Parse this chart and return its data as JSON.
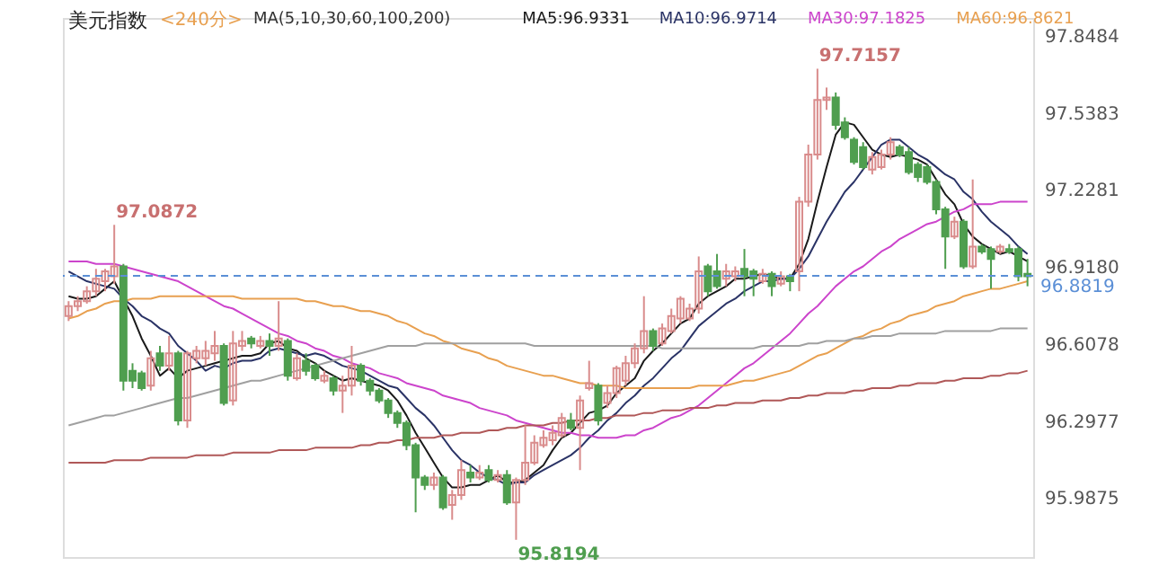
{
  "chart_data": {
    "type": "candlestick",
    "title": "美元指数",
    "subtitle": "<240分>",
    "categories": [
      null,
      null,
      null,
      null,
      null,
      null,
      null,
      null,
      null,
      null,
      null,
      null,
      null,
      null,
      null,
      null,
      null,
      null,
      null,
      null,
      null,
      null,
      null,
      null,
      null,
      null,
      null,
      null,
      null,
      null,
      null,
      null,
      null,
      null,
      null,
      null,
      null,
      null,
      null,
      null,
      null,
      null,
      null,
      null,
      null,
      null,
      null,
      null,
      null,
      null,
      null,
      null,
      null,
      null,
      null,
      null,
      null,
      null,
      null,
      null,
      null,
      null,
      null,
      null,
      null,
      null,
      null,
      null,
      null,
      null,
      null,
      null,
      null,
      null,
      null,
      null,
      null,
      null,
      null,
      null,
      null,
      null,
      null,
      null,
      null,
      null,
      null,
      null,
      null,
      null,
      null,
      null,
      null,
      null,
      null,
      null,
      null,
      null,
      null,
      null,
      null,
      null,
      null,
      null,
      null,
      null
    ],
    "ohlc": [
      [
        96.72,
        96.78,
        96.7,
        96.76
      ],
      [
        96.76,
        96.8,
        96.74,
        96.78
      ],
      [
        96.78,
        96.84,
        96.77,
        96.82
      ],
      [
        96.82,
        96.91,
        96.8,
        96.87
      ],
      [
        96.86,
        96.91,
        96.82,
        96.9
      ],
      [
        96.88,
        97.0872,
        96.85,
        96.92
      ],
      [
        96.92,
        96.93,
        96.42,
        96.46
      ],
      [
        96.5,
        96.53,
        96.43,
        96.46
      ],
      [
        96.49,
        96.5,
        96.42,
        96.43
      ],
      [
        96.44,
        96.58,
        96.42,
        96.55
      ],
      [
        96.57,
        96.6,
        96.5,
        96.52
      ],
      [
        96.52,
        96.64,
        96.5,
        96.57
      ],
      [
        96.57,
        96.58,
        96.28,
        96.3
      ],
      [
        96.3,
        96.58,
        96.27,
        96.57
      ],
      [
        96.55,
        96.6,
        96.53,
        96.58
      ],
      [
        96.55,
        96.62,
        96.52,
        96.58
      ],
      [
        96.57,
        96.66,
        96.54,
        96.6
      ],
      [
        96.6,
        96.61,
        96.36,
        96.37
      ],
      [
        96.38,
        96.66,
        96.36,
        96.61
      ],
      [
        96.6,
        96.66,
        96.58,
        96.62
      ],
      [
        96.63,
        96.64,
        96.59,
        96.61
      ],
      [
        96.6,
        96.64,
        96.59,
        96.62
      ],
      [
        96.62,
        96.65,
        96.56,
        96.6
      ],
      [
        96.6,
        96.78,
        96.58,
        96.63
      ],
      [
        96.62,
        96.63,
        96.46,
        96.48
      ],
      [
        96.47,
        96.57,
        96.46,
        96.55
      ],
      [
        96.54,
        96.57,
        96.48,
        96.5
      ],
      [
        96.52,
        96.53,
        96.46,
        96.47
      ],
      [
        96.46,
        96.5,
        96.45,
        96.48
      ],
      [
        96.47,
        96.48,
        96.4,
        96.42
      ],
      [
        96.42,
        96.48,
        96.33,
        96.44
      ],
      [
        96.44,
        96.6,
        96.4,
        96.52
      ],
      [
        96.52,
        96.53,
        96.44,
        96.46
      ],
      [
        96.46,
        96.47,
        96.4,
        96.42
      ],
      [
        96.42,
        96.43,
        96.37,
        96.38
      ],
      [
        96.38,
        96.39,
        96.31,
        96.33
      ],
      [
        96.33,
        96.34,
        96.27,
        96.29
      ],
      [
        96.29,
        96.3,
        96.18,
        96.2
      ],
      [
        96.2,
        96.21,
        95.93,
        96.07
      ],
      [
        96.07,
        96.08,
        96.02,
        96.04
      ],
      [
        96.04,
        96.09,
        96.02,
        96.07
      ],
      [
        96.07,
        96.08,
        95.94,
        95.95
      ],
      [
        95.96,
        96.02,
        95.9,
        96.0
      ],
      [
        96.0,
        96.14,
        95.98,
        96.1
      ],
      [
        96.09,
        96.12,
        96.05,
        96.07
      ],
      [
        96.07,
        96.12,
        96.06,
        96.09
      ],
      [
        96.1,
        96.12,
        96.05,
        96.06
      ],
      [
        96.06,
        96.1,
        96.05,
        96.08
      ],
      [
        96.08,
        96.1,
        95.96,
        95.97
      ],
      [
        95.97,
        96.07,
        95.8194,
        96.06
      ],
      [
        96.06,
        96.28,
        96.04,
        96.13
      ],
      [
        96.13,
        96.24,
        96.12,
        96.21
      ],
      [
        96.2,
        96.26,
        96.19,
        96.23
      ],
      [
        96.22,
        96.28,
        96.2,
        96.25
      ],
      [
        96.24,
        96.33,
        96.23,
        96.31
      ],
      [
        96.3,
        96.33,
        96.26,
        96.27
      ],
      [
        96.27,
        96.4,
        96.1,
        96.38
      ],
      [
        96.43,
        96.54,
        96.42,
        96.45
      ],
      [
        96.44,
        96.45,
        96.28,
        96.3
      ],
      [
        96.37,
        96.44,
        96.35,
        96.41
      ],
      [
        96.41,
        96.52,
        96.39,
        96.51
      ],
      [
        96.46,
        96.56,
        96.44,
        96.53
      ],
      [
        96.53,
        96.61,
        96.51,
        96.59
      ],
      [
        96.59,
        96.8,
        96.57,
        96.66
      ],
      [
        96.66,
        96.67,
        96.58,
        96.6
      ],
      [
        96.61,
        96.69,
        96.6,
        96.67
      ],
      [
        96.66,
        96.75,
        96.65,
        96.72
      ],
      [
        96.71,
        96.8,
        96.69,
        96.79
      ],
      [
        96.71,
        96.77,
        96.7,
        96.75
      ],
      [
        96.75,
        96.96,
        96.73,
        96.9
      ],
      [
        96.92,
        96.93,
        96.8,
        96.82
      ],
      [
        96.9,
        96.97,
        96.83,
        96.84
      ],
      [
        96.87,
        96.93,
        96.84,
        96.9
      ],
      [
        96.88,
        96.92,
        96.86,
        96.9
      ],
      [
        96.91,
        96.99,
        96.8,
        96.88
      ],
      [
        96.9,
        96.91,
        96.8,
        96.87
      ],
      [
        96.86,
        96.91,
        96.85,
        96.89
      ],
      [
        96.89,
        96.9,
        96.8,
        96.84
      ],
      [
        96.85,
        96.9,
        96.84,
        96.88
      ],
      [
        96.88,
        96.89,
        96.82,
        96.86
      ],
      [
        96.9,
        97.2,
        96.82,
        97.18
      ],
      [
        97.18,
        97.41,
        97.16,
        97.37
      ],
      [
        97.37,
        97.7157,
        97.35,
        97.59
      ],
      [
        97.59,
        97.64,
        97.55,
        97.6
      ],
      [
        97.6,
        97.62,
        97.47,
        97.49
      ],
      [
        97.5,
        97.52,
        97.43,
        97.44
      ],
      [
        97.43,
        97.44,
        97.33,
        97.34
      ],
      [
        97.4,
        97.42,
        97.31,
        97.32
      ],
      [
        97.31,
        97.38,
        97.29,
        97.36
      ],
      [
        97.32,
        97.39,
        97.31,
        97.37
      ],
      [
        97.37,
        97.44,
        97.35,
        97.42
      ],
      [
        97.4,
        97.41,
        97.36,
        97.37
      ],
      [
        97.38,
        97.4,
        97.29,
        97.3
      ],
      [
        97.33,
        97.34,
        97.26,
        97.28
      ],
      [
        97.32,
        97.33,
        97.25,
        97.26
      ],
      [
        97.26,
        97.27,
        97.13,
        97.15
      ],
      [
        97.15,
        97.16,
        96.91,
        97.04
      ],
      [
        97.04,
        97.12,
        97.03,
        97.1
      ],
      [
        97.1,
        97.11,
        96.91,
        96.92
      ],
      [
        96.92,
        97.27,
        96.91,
        97.0
      ],
      [
        97.0,
        97.01,
        96.97,
        96.98
      ],
      [
        96.99,
        97.0,
        96.83,
        96.95
      ],
      [
        96.98,
        97.01,
        96.97,
        97.0
      ],
      [
        96.99,
        97.01,
        96.97,
        96.98
      ],
      [
        96.99,
        97.0,
        96.86,
        96.88
      ],
      [
        96.89,
        96.95,
        96.84,
        96.88
      ]
    ],
    "colors": [
      "#d98c8c",
      "#d98c8c",
      "#d98c8c",
      "#d98c8c",
      "#d98c8c",
      "#d98c8c",
      "#4f9e4f",
      "#4f9e4f",
      "#4f9e4f",
      "#d98c8c",
      "#4f9e4f",
      "#d98c8c",
      "#4f9e4f",
      "#d98c8c",
      "#d98c8c",
      "#d98c8c",
      "#d98c8c",
      "#4f9e4f",
      "#d98c8c",
      "#d98c8c",
      "#4f9e4f",
      "#d98c8c",
      "#4f9e4f",
      "#d98c8c",
      "#4f9e4f",
      "#d98c8c",
      "#4f9e4f",
      "#4f9e4f",
      "#d98c8c",
      "#4f9e4f",
      "#d98c8c",
      "#d98c8c",
      "#4f9e4f",
      "#4f9e4f",
      "#4f9e4f",
      "#4f9e4f",
      "#4f9e4f",
      "#4f9e4f",
      "#4f9e4f",
      "#4f9e4f",
      "#d98c8c",
      "#4f9e4f",
      "#d98c8c",
      "#d98c8c",
      "#4f9e4f",
      "#d98c8c",
      "#4f9e4f",
      "#d98c8c",
      "#4f9e4f",
      "#d98c8c",
      "#d98c8c",
      "#d98c8c",
      "#d98c8c",
      "#d98c8c",
      "#d98c8c",
      "#4f9e4f",
      "#d98c8c",
      "#d98c8c",
      "#4f9e4f",
      "#d98c8c",
      "#d98c8c",
      "#d98c8c",
      "#d98c8c",
      "#d98c8c",
      "#4f9e4f",
      "#d98c8c",
      "#d98c8c",
      "#d98c8c",
      "#d98c8c",
      "#d98c8c",
      "#4f9e4f",
      "#4f9e4f",
      "#d98c8c",
      "#d98c8c",
      "#4f9e4f",
      "#4f9e4f",
      "#d98c8c",
      "#4f9e4f",
      "#d98c8c",
      "#4f9e4f",
      "#d98c8c",
      "#d98c8c",
      "#d98c8c",
      "#d98c8c",
      "#4f9e4f",
      "#4f9e4f",
      "#4f9e4f",
      "#4f9e4f",
      "#d98c8c",
      "#d98c8c",
      "#d98c8c",
      "#4f9e4f",
      "#4f9e4f",
      "#4f9e4f",
      "#4f9e4f",
      "#4f9e4f",
      "#4f9e4f",
      "#d98c8c",
      "#4f9e4f",
      "#d98c8c",
      "#4f9e4f",
      "#4f9e4f",
      "#d98c8c",
      "#4f9e4f",
      "#4f9e4f",
      "#4f9e4f"
    ],
    "series": [
      {
        "type": "line",
        "name": "MA5:96.9331",
        "color": "#1a1a1a",
        "values": [
          96.8,
          96.79,
          96.79,
          96.8,
          96.83,
          96.86,
          96.79,
          96.72,
          96.63,
          96.56,
          96.48,
          96.51,
          96.47,
          96.5,
          96.51,
          96.52,
          96.53,
          96.54,
          96.55,
          96.56,
          96.56,
          96.57,
          96.61,
          96.62,
          96.59,
          96.58,
          96.55,
          96.53,
          96.5,
          96.48,
          96.46,
          96.47,
          96.46,
          96.45,
          96.44,
          96.42,
          96.38,
          96.32,
          96.25,
          96.19,
          96.13,
          96.07,
          96.03,
          96.03,
          96.04,
          96.04,
          96.06,
          96.08,
          96.05,
          96.05,
          96.06,
          96.09,
          96.12,
          96.18,
          96.23,
          96.25,
          96.29,
          96.33,
          96.34,
          96.36,
          96.41,
          96.44,
          96.47,
          96.54,
          96.58,
          96.61,
          96.65,
          96.69,
          96.71,
          96.77,
          96.8,
          96.82,
          96.84,
          96.87,
          96.87,
          96.88,
          96.89,
          96.88,
          96.87,
          96.87,
          96.93,
          97.03,
          97.18,
          97.32,
          97.45,
          97.5,
          97.49,
          97.44,
          97.39,
          97.37,
          97.36,
          97.37,
          97.36,
          97.35,
          97.33,
          97.27,
          97.21,
          97.17,
          97.09,
          97.04,
          97.01,
          96.99,
          96.97,
          96.98,
          96.96,
          96.94
        ]
      },
      {
        "type": "line",
        "name": "MA10:96.9714",
        "color": "#2a3366",
        "values": [
          96.9,
          96.88,
          96.86,
          96.85,
          96.84,
          96.83,
          96.79,
          96.76,
          96.72,
          96.7,
          96.67,
          96.65,
          96.6,
          96.57,
          96.54,
          96.5,
          96.52,
          96.51,
          96.53,
          96.54,
          96.54,
          96.55,
          96.58,
          96.59,
          96.58,
          96.57,
          96.56,
          96.57,
          96.56,
          96.54,
          96.52,
          96.51,
          96.5,
          96.48,
          96.46,
          96.44,
          96.43,
          96.39,
          96.35,
          96.32,
          96.28,
          96.23,
          96.18,
          96.14,
          96.12,
          96.09,
          96.07,
          96.06,
          96.04,
          96.05,
          96.05,
          96.08,
          96.1,
          96.12,
          96.14,
          96.16,
          96.19,
          96.23,
          96.26,
          96.3,
          96.33,
          96.37,
          96.4,
          96.44,
          96.47,
          96.51,
          96.55,
          96.58,
          96.63,
          96.68,
          96.71,
          96.74,
          96.77,
          96.79,
          96.82,
          96.84,
          96.86,
          96.86,
          96.87,
          96.87,
          96.91,
          96.96,
          97.03,
          97.1,
          97.16,
          97.22,
          97.26,
          97.31,
          97.36,
          97.41,
          97.43,
          97.43,
          97.4,
          97.37,
          97.35,
          97.32,
          97.29,
          97.27,
          97.22,
          97.19,
          97.14,
          97.1,
          97.07,
          97.04,
          97.0,
          96.97
        ]
      },
      {
        "type": "line",
        "name": "MA30:97.1825",
        "color": "#cc44cc",
        "values": [
          96.94,
          96.94,
          96.94,
          96.93,
          96.93,
          96.93,
          96.92,
          96.91,
          96.9,
          96.89,
          96.88,
          96.87,
          96.86,
          96.84,
          96.82,
          96.8,
          96.78,
          96.76,
          96.75,
          96.73,
          96.71,
          96.69,
          96.67,
          96.65,
          96.64,
          96.62,
          96.61,
          96.59,
          96.58,
          96.56,
          96.55,
          96.53,
          96.52,
          96.51,
          96.49,
          96.48,
          96.47,
          96.45,
          96.44,
          96.43,
          96.42,
          96.4,
          96.39,
          96.38,
          96.37,
          96.35,
          96.34,
          96.33,
          96.32,
          96.3,
          96.29,
          96.28,
          96.27,
          96.26,
          96.25,
          96.25,
          96.24,
          96.24,
          96.23,
          96.23,
          96.23,
          96.24,
          96.24,
          96.26,
          96.27,
          96.29,
          96.31,
          96.32,
          96.34,
          96.36,
          96.39,
          96.42,
          96.45,
          96.48,
          96.51,
          96.53,
          96.56,
          96.59,
          96.62,
          96.65,
          96.69,
          96.73,
          96.76,
          96.8,
          96.84,
          96.87,
          96.9,
          96.92,
          96.95,
          96.98,
          97.0,
          97.03,
          97.05,
          97.07,
          97.09,
          97.1,
          97.12,
          97.14,
          97.15,
          97.17,
          97.17,
          97.17,
          97.18,
          97.18,
          97.18,
          97.18
        ]
      },
      {
        "type": "line",
        "name": "MA60:96.8621",
        "color": "#e8a050",
        "values": [
          96.71,
          96.72,
          96.74,
          96.75,
          96.77,
          96.78,
          96.78,
          96.79,
          96.79,
          96.79,
          96.8,
          96.8,
          96.8,
          96.8,
          96.8,
          96.8,
          96.8,
          96.8,
          96.8,
          96.79,
          96.79,
          96.79,
          96.79,
          96.79,
          96.79,
          96.79,
          96.78,
          96.78,
          96.77,
          96.76,
          96.76,
          96.75,
          96.74,
          96.74,
          96.73,
          96.72,
          96.7,
          96.69,
          96.67,
          96.65,
          96.64,
          96.62,
          96.61,
          96.59,
          96.58,
          96.57,
          96.55,
          96.54,
          96.52,
          96.51,
          96.5,
          96.49,
          96.48,
          96.48,
          96.47,
          96.46,
          96.45,
          96.45,
          96.44,
          96.44,
          96.44,
          96.43,
          96.43,
          96.43,
          96.43,
          96.43,
          96.43,
          96.43,
          96.43,
          96.44,
          96.44,
          96.44,
          96.44,
          96.45,
          96.46,
          96.46,
          96.47,
          96.48,
          96.49,
          96.5,
          96.52,
          96.54,
          96.56,
          96.57,
          96.59,
          96.61,
          96.63,
          96.64,
          96.66,
          96.67,
          96.69,
          96.7,
          96.72,
          96.73,
          96.74,
          96.76,
          96.77,
          96.78,
          96.8,
          96.81,
          96.82,
          96.83,
          96.83,
          96.84,
          96.85,
          96.86
        ]
      },
      {
        "type": "line",
        "color": "#a0a0a0",
        "values": [
          96.28,
          96.29,
          96.3,
          96.31,
          96.32,
          96.32,
          96.33,
          96.34,
          96.35,
          96.36,
          96.37,
          96.38,
          96.39,
          96.39,
          96.4,
          96.41,
          96.42,
          96.43,
          96.44,
          96.45,
          96.46,
          96.46,
          96.47,
          96.48,
          96.49,
          96.5,
          96.51,
          96.52,
          96.53,
          96.54,
          96.55,
          96.56,
          96.57,
          96.58,
          96.59,
          96.6,
          96.6,
          96.6,
          96.6,
          96.61,
          96.61,
          96.61,
          96.61,
          96.61,
          96.61,
          96.61,
          96.61,
          96.61,
          96.61,
          96.61,
          96.61,
          96.6,
          96.6,
          96.6,
          96.6,
          96.6,
          96.6,
          96.6,
          96.6,
          96.6,
          96.6,
          96.6,
          96.6,
          96.6,
          96.6,
          96.59,
          96.59,
          96.59,
          96.59,
          96.59,
          96.59,
          96.59,
          96.59,
          96.59,
          96.59,
          96.59,
          96.6,
          96.6,
          96.6,
          96.6,
          96.6,
          96.61,
          96.61,
          96.62,
          96.62,
          96.62,
          96.63,
          96.63,
          96.64,
          96.64,
          96.64,
          96.65,
          96.65,
          96.65,
          96.65,
          96.65,
          96.66,
          96.66,
          96.66,
          96.66,
          96.66,
          96.66,
          96.67,
          96.67,
          96.67,
          96.67
        ]
      },
      {
        "type": "line",
        "color": "#b05858",
        "values": [
          96.13,
          96.13,
          96.13,
          96.13,
          96.13,
          96.14,
          96.14,
          96.14,
          96.14,
          96.15,
          96.15,
          96.15,
          96.15,
          96.15,
          96.16,
          96.16,
          96.16,
          96.16,
          96.17,
          96.17,
          96.17,
          96.17,
          96.17,
          96.18,
          96.18,
          96.18,
          96.18,
          96.19,
          96.19,
          96.19,
          96.19,
          96.19,
          96.2,
          96.2,
          96.21,
          96.21,
          96.22,
          96.22,
          96.23,
          96.23,
          96.23,
          96.24,
          96.24,
          96.25,
          96.25,
          96.25,
          96.26,
          96.26,
          96.27,
          96.27,
          96.28,
          96.28,
          96.28,
          96.29,
          96.29,
          96.3,
          96.3,
          96.3,
          96.31,
          96.31,
          96.32,
          96.32,
          96.32,
          96.33,
          96.33,
          96.34,
          96.34,
          96.34,
          96.35,
          96.35,
          96.35,
          96.36,
          96.36,
          96.37,
          96.37,
          96.37,
          96.38,
          96.38,
          96.38,
          96.39,
          96.39,
          96.4,
          96.4,
          96.41,
          96.41,
          96.41,
          96.42,
          96.42,
          96.43,
          96.43,
          96.43,
          96.44,
          96.44,
          96.45,
          96.45,
          96.45,
          96.46,
          96.46,
          96.47,
          96.47,
          96.47,
          96.48,
          96.48,
          96.49,
          96.49,
          96.5
        ]
      }
    ],
    "annotations": [
      "MA(5,10,30,60,100,200)",
      "97.0872",
      "97.7157",
      "95.8194"
    ],
    "ref_lines": [
      {
        "axis": "y",
        "value": 96.8819,
        "label": "96.8819",
        "color": "#5b8fd6",
        "line_style": "dashed"
      }
    ],
    "ylim": [
      95.75,
      97.92
    ],
    "yticks": [
      {
        "value": 95.9875,
        "label": "95.9875"
      },
      {
        "value": 96.2977,
        "label": "96.2977"
      },
      {
        "value": 96.6078,
        "label": "96.6078"
      },
      {
        "value": 96.918,
        "label": "96.9180"
      },
      {
        "value": 97.2281,
        "label": "97.2281"
      },
      {
        "value": 97.5383,
        "label": "97.5383"
      },
      {
        "value": 97.8484,
        "label": "97.8484"
      }
    ],
    "grid": false,
    "legend": "top right",
    "tick_labels": "y"
  }
}
